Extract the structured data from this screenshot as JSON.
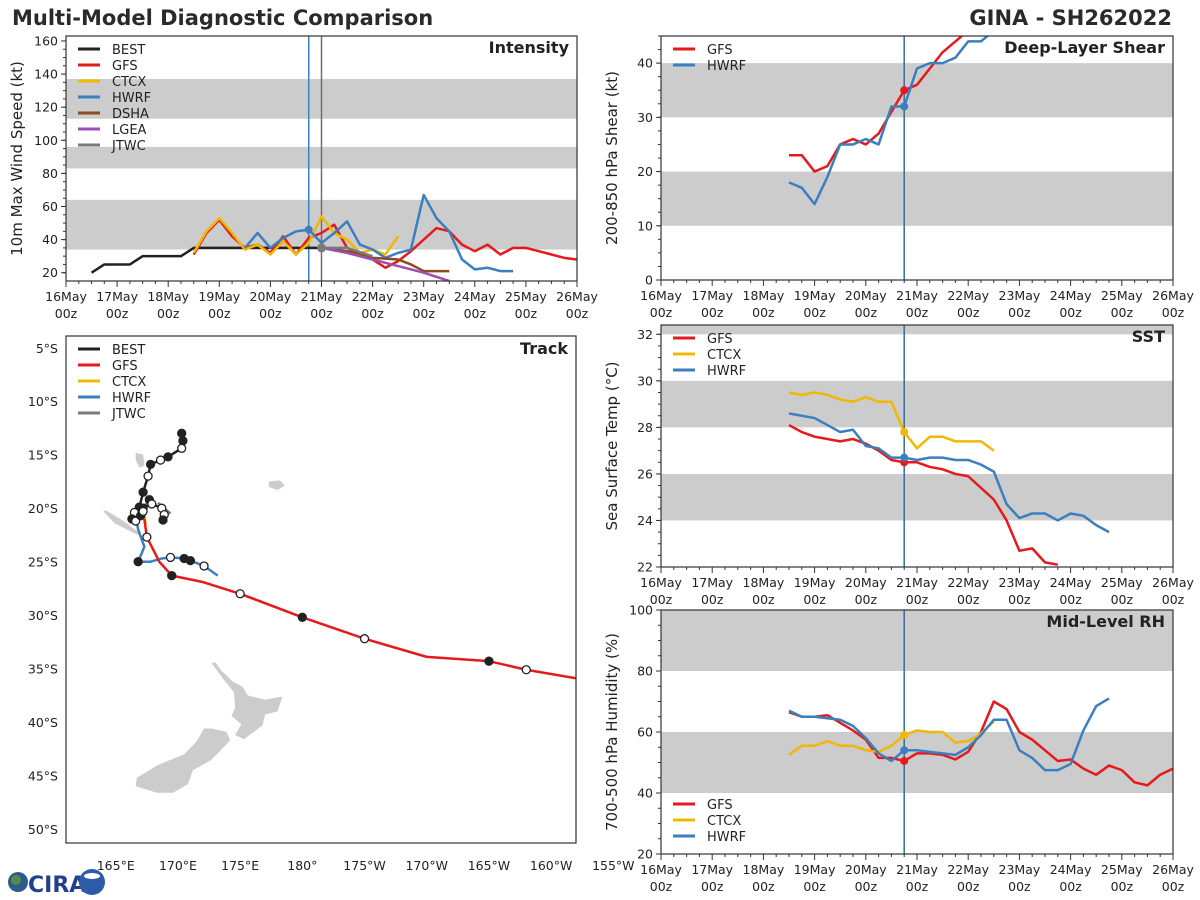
{
  "header": {
    "title": "Multi-Model Diagnostic Comparison",
    "storm": "GINA - SH262022"
  },
  "colors": {
    "BEST": "#222222",
    "GFS": "#e41a1c",
    "CTCX": "#f0b800",
    "HWRF": "#3a7fbf",
    "DSHA": "#8c4a1e",
    "LGEA": "#9b4fb0",
    "JTWC": "#7a7a7a",
    "band": "#cccccc"
  },
  "time_axis": {
    "ticks": [
      "16May\n00z",
      "17May\n00z",
      "18May\n00z",
      "19May\n00z",
      "20May\n00z",
      "21May\n00z",
      "22May\n00z",
      "23May\n00z",
      "24May\n00z",
      "25May\n00z",
      "26May\n00z"
    ],
    "range_days": [
      0,
      10
    ]
  },
  "logo": {
    "text": "CIRA"
  },
  "chart_data": [
    {
      "id": "intensity",
      "type": "line",
      "title": "Intensity",
      "ylabel": "10m Max Wind Speed (kt)",
      "xlabel": "",
      "ylim": [
        15,
        163
      ],
      "yticks": [
        20,
        40,
        60,
        80,
        100,
        120,
        140,
        160
      ],
      "bands": [
        [
          34,
          64
        ],
        [
          83,
          96
        ],
        [
          113,
          137
        ]
      ],
      "vlines": [
        {
          "x": 4.75,
          "color": "#3a7fbf"
        },
        {
          "x": 5.0,
          "color": "#7a6a6a"
        }
      ],
      "legend": "top-left",
      "series": [
        {
          "name": "BEST",
          "x": [
            0.5,
            0.75,
            1.0,
            1.25,
            1.5,
            1.75,
            2.0,
            2.25,
            2.5,
            2.75,
            3.0,
            3.25,
            3.5,
            3.75,
            4.0,
            4.25,
            4.5,
            4.75,
            5.0
          ],
          "y": [
            20,
            25,
            25,
            25,
            30,
            30,
            30,
            30,
            35,
            35,
            35,
            35,
            35,
            35,
            35,
            35,
            35,
            35,
            35
          ]
        },
        {
          "name": "GFS",
          "x": [
            2.5,
            2.75,
            3.0,
            3.25,
            3.5,
            3.75,
            4.0,
            4.25,
            4.5,
            4.75,
            5.0,
            5.25,
            5.5,
            5.75,
            6.0,
            6.25,
            6.5,
            6.75,
            7.0,
            7.25,
            7.5,
            7.75,
            8.0,
            8.25,
            8.5,
            8.75,
            9.0,
            9.25,
            9.5,
            9.75,
            10.0
          ],
          "y": [
            31,
            44,
            52,
            42,
            35,
            37,
            32,
            42,
            31,
            41,
            44,
            49,
            35,
            31,
            28,
            23,
            27,
            33,
            40,
            47,
            45,
            37,
            33,
            37,
            31,
            35,
            35,
            33,
            31,
            29,
            28
          ]
        },
        {
          "name": "CTCX",
          "x": [
            2.5,
            2.75,
            3.0,
            3.25,
            3.5,
            3.75,
            4.0,
            4.25,
            4.5,
            4.75,
            5.0,
            5.25,
            5.5,
            5.75,
            6.0,
            6.25,
            6.5
          ],
          "y": [
            32,
            45,
            53,
            44,
            34,
            37,
            31,
            39,
            31,
            38,
            54,
            44,
            40,
            32,
            34,
            31,
            42
          ]
        },
        {
          "name": "HWRF",
          "x": [
            3.5,
            3.75,
            4.0,
            4.25,
            4.5,
            4.75,
            5.0,
            5.25,
            5.5,
            5.75,
            6.0,
            6.25,
            6.5,
            6.75,
            7.0,
            7.25,
            7.5,
            7.75,
            8.0,
            8.25,
            8.5,
            8.75
          ],
          "y": [
            35,
            44,
            35,
            41,
            45,
            46,
            38,
            44,
            51,
            37,
            34,
            29,
            32,
            34,
            67,
            53,
            45,
            28,
            22,
            23,
            21,
            21
          ]
        },
        {
          "name": "DSHA",
          "x": [
            5.0,
            5.5,
            6.0,
            6.5,
            6.75,
            7.0,
            7.5
          ],
          "y": [
            35,
            33,
            29,
            28,
            25,
            21,
            21
          ]
        },
        {
          "name": "LGEA",
          "x": [
            5.0,
            5.5,
            6.0,
            6.5,
            7.0,
            7.5
          ],
          "y": [
            35,
            32,
            28,
            24,
            20,
            15
          ]
        },
        {
          "name": "JTWC",
          "x": [
            5.0,
            5.5,
            6.0
          ],
          "y": [
            35,
            35,
            30
          ]
        }
      ]
    },
    {
      "id": "shear",
      "type": "line",
      "title": "Deep-Layer Shear",
      "ylabel": "200-850 hPa Shear (kt)",
      "xlabel": "",
      "ylim": [
        0,
        45
      ],
      "yticks": [
        0,
        10,
        20,
        30,
        40
      ],
      "bands": [
        [
          10,
          20
        ],
        [
          30,
          40
        ]
      ],
      "vlines": [
        {
          "x": 4.75,
          "color": "#3a6a9a"
        }
      ],
      "legend": "top-left",
      "series": [
        {
          "name": "GFS",
          "x": [
            2.5,
            2.75,
            3.0,
            3.25,
            3.5,
            3.75,
            4.0,
            4.25,
            4.5,
            4.75,
            5.0,
            5.25,
            5.5,
            5.75,
            6.0
          ],
          "y": [
            23,
            23,
            20,
            21,
            25,
            26,
            25,
            27,
            31,
            35,
            36,
            39,
            42,
            44,
            46
          ]
        },
        {
          "name": "HWRF",
          "x": [
            2.5,
            2.75,
            3.0,
            3.25,
            3.5,
            3.75,
            4.0,
            4.25,
            4.5,
            4.75,
            5.0,
            5.25,
            5.5,
            5.75,
            6.0,
            6.25,
            6.5
          ],
          "y": [
            18,
            17,
            14,
            19,
            25,
            25,
            26,
            25,
            32,
            32,
            39,
            40,
            40,
            41,
            44,
            44,
            46
          ]
        }
      ]
    },
    {
      "id": "sst",
      "type": "line",
      "title": "SST",
      "ylabel": "Sea Surface Temp (°C)",
      "xlabel": "",
      "ylim": [
        22,
        32.4
      ],
      "yticks": [
        22,
        24,
        26,
        28,
        30,
        32
      ],
      "bands": [
        [
          24,
          26
        ],
        [
          28,
          30
        ],
        [
          32,
          33
        ]
      ],
      "vlines": [
        {
          "x": 4.75,
          "color": "#3a6a9a"
        }
      ],
      "legend": "top-left",
      "series": [
        {
          "name": "GFS",
          "x": [
            2.5,
            2.75,
            3.0,
            3.25,
            3.5,
            3.75,
            4.0,
            4.25,
            4.5,
            4.75,
            5.0,
            5.25,
            5.5,
            5.75,
            6.0,
            6.25,
            6.5,
            6.75,
            7.0,
            7.25,
            7.5,
            7.75
          ],
          "y": [
            28.1,
            27.8,
            27.6,
            27.5,
            27.4,
            27.5,
            27.3,
            27.0,
            26.6,
            26.5,
            26.5,
            26.3,
            26.2,
            26.0,
            25.9,
            25.4,
            24.9,
            24.0,
            22.7,
            22.8,
            22.2,
            22.1
          ]
        },
        {
          "name": "CTCX",
          "x": [
            2.5,
            2.75,
            3.0,
            3.25,
            3.5,
            3.75,
            4.0,
            4.25,
            4.5,
            4.75,
            5.0,
            5.25,
            5.5,
            5.75,
            6.0,
            6.25,
            6.5
          ],
          "y": [
            29.5,
            29.4,
            29.5,
            29.4,
            29.2,
            29.1,
            29.3,
            29.1,
            29.1,
            27.8,
            27.1,
            27.6,
            27.6,
            27.4,
            27.4,
            27.4,
            27.0
          ]
        },
        {
          "name": "HWRF",
          "x": [
            2.5,
            2.75,
            3.0,
            3.25,
            3.5,
            3.75,
            4.0,
            4.25,
            4.5,
            4.75,
            5.0,
            5.25,
            5.5,
            5.75,
            6.0,
            6.25,
            6.5,
            6.75,
            7.0,
            7.25,
            7.5,
            7.75,
            8.0,
            8.25,
            8.5,
            8.75
          ],
          "y": [
            28.6,
            28.5,
            28.4,
            28.1,
            27.8,
            27.9,
            27.2,
            27.1,
            26.7,
            26.7,
            26.6,
            26.7,
            26.7,
            26.6,
            26.6,
            26.4,
            26.1,
            24.7,
            24.1,
            24.3,
            24.3,
            24.0,
            24.3,
            24.2,
            23.8,
            23.5
          ]
        }
      ]
    },
    {
      "id": "rh",
      "type": "line",
      "title": "Mid-Level RH",
      "ylabel": "700-500 hPa Humidity (%)",
      "xlabel": "",
      "ylim": [
        20,
        100
      ],
      "yticks": [
        20,
        40,
        60,
        80,
        100
      ],
      "bands": [
        [
          40,
          60
        ],
        [
          80,
          100
        ]
      ],
      "vlines": [
        {
          "x": 4.75,
          "color": "#3a6a9a"
        }
      ],
      "legend": "bottom-left",
      "series": [
        {
          "name": "GFS",
          "x": [
            2.5,
            2.75,
            3.0,
            3.25,
            3.5,
            3.75,
            4.0,
            4.25,
            4.5,
            4.75,
            5.0,
            5.25,
            5.5,
            5.75,
            6.0,
            6.25,
            6.5,
            6.75,
            7.0,
            7.25,
            7.5,
            7.75,
            8.0,
            8.25,
            8.5,
            8.75,
            9.0,
            9.25,
            9.5,
            9.75,
            10.0
          ],
          "y": [
            66.5,
            65,
            65,
            65.5,
            63,
            60.5,
            57.5,
            51.5,
            51.5,
            50.5,
            53,
            53,
            52.5,
            51,
            53.5,
            60,
            70,
            67.5,
            60,
            57.5,
            54,
            50.5,
            51,
            48,
            46,
            49,
            47.5,
            43.5,
            42.5,
            46,
            48
          ]
        },
        {
          "name": "CTCX",
          "x": [
            2.5,
            2.75,
            3.0,
            3.25,
            3.5,
            3.75,
            4.0,
            4.25,
            4.5,
            4.75,
            5.0,
            5.25,
            5.5,
            5.75,
            6.0,
            6.25,
            6.5
          ],
          "y": [
            52.5,
            55.5,
            55.5,
            57,
            55.5,
            55.5,
            54,
            53.5,
            55.5,
            59,
            60.5,
            60,
            60,
            56.5,
            57,
            59.5,
            63.5
          ]
        },
        {
          "name": "HWRF",
          "x": [
            2.5,
            2.75,
            3.0,
            3.25,
            3.5,
            3.75,
            4.0,
            4.25,
            4.5,
            4.75,
            5.0,
            5.25,
            5.5,
            5.75,
            6.0,
            6.25,
            6.5,
            6.75,
            7.0,
            7.25,
            7.5,
            7.75,
            8.0,
            8.25,
            8.5,
            8.75
          ],
          "y": [
            67,
            65,
            65,
            64.5,
            64,
            62,
            58,
            53,
            50.5,
            54,
            54,
            53.5,
            53,
            52.5,
            55,
            59,
            64,
            64,
            54,
            51.5,
            47.5,
            47.5,
            49.5,
            60.5,
            68.5,
            71
          ]
        }
      ]
    },
    {
      "id": "track",
      "type": "line",
      "title": "Track",
      "ylabel": "",
      "xlabel": "",
      "xlim": [
        161,
        202
      ],
      "ylim": [
        -51.3,
        -3.9
      ],
      "xticks": [
        {
          "v": 165,
          "label": "165°E"
        },
        {
          "v": 170,
          "label": "170°E"
        },
        {
          "v": 175,
          "label": "175°E"
        },
        {
          "v": 180,
          "label": "180°"
        },
        {
          "v": 185,
          "label": "175°W"
        },
        {
          "v": 190,
          "label": "170°W"
        },
        {
          "v": 195,
          "label": "165°W"
        },
        {
          "v": 200,
          "label": "160°W"
        },
        {
          "v": 205,
          "label": "155°W"
        }
      ],
      "yticks": [
        {
          "v": -5,
          "label": "5°S"
        },
        {
          "v": -10,
          "label": "10°S"
        },
        {
          "v": -15,
          "label": "15°S"
        },
        {
          "v": -20,
          "label": "20°S"
        },
        {
          "v": -25,
          "label": "25°S"
        },
        {
          "v": -30,
          "label": "30°S"
        },
        {
          "v": -35,
          "label": "35°S"
        },
        {
          "v": -40,
          "label": "40°S"
        },
        {
          "v": -45,
          "label": "45°S"
        },
        {
          "v": -50,
          "label": "50°S"
        }
      ],
      "legend": "top-left",
      "series": [
        {
          "name": "BEST",
          "lon": [
            170.3,
            170.4,
            170.3,
            169.2,
            168.6,
            167.8,
            167.6,
            167.2,
            166.9,
            167.2,
            167.9,
            168.7,
            168.9,
            168.8
          ],
          "lat": [
            -13.0,
            -13.7,
            -14.4,
            -15.2,
            -15.5,
            -15.9,
            -17.0,
            -18.5,
            -19.9,
            -20.0,
            -19.6,
            -20.0,
            -20.6,
            -21.1
          ],
          "markers": [
            1,
            1,
            0,
            1,
            0,
            1,
            0,
            1,
            1,
            1,
            0,
            0,
            0,
            1
          ]
        },
        {
          "name": "BEST_B",
          "lon": [
            166.9,
            166.5,
            166.3,
            166.6,
            167.0,
            167.2
          ],
          "lat": [
            -19.9,
            -20.4,
            -21.0,
            -21.2,
            -20.7,
            -20.3
          ],
          "markers": [
            1,
            0,
            1,
            0,
            1,
            0
          ]
        },
        {
          "name": "GFS",
          "lon": [
            167.3,
            167.5,
            168.5,
            169.5,
            172.0,
            175.0,
            180.0,
            185.0,
            190.0,
            195.0,
            198.0,
            203.0
          ],
          "lat": [
            -21.0,
            -22.7,
            -25.0,
            -26.3,
            -26.9,
            -28.0,
            -30.2,
            -32.2,
            -33.9,
            -34.3,
            -35.1,
            -36.1
          ],
          "markers": [
            -1,
            0,
            -1,
            1,
            -1,
            0,
            1,
            0,
            -1,
            1,
            0,
            -1
          ]
        },
        {
          "name": "CTCX",
          "lon": [
            167.0,
            167.3,
            167.4
          ],
          "lat": [
            -19.7,
            -20.5,
            -21.5
          ],
          "markers": [
            -1,
            -1,
            -1
          ]
        },
        {
          "name": "HWRF",
          "lon": [
            167.7,
            167.2,
            166.6,
            166.8,
            167.3,
            166.8,
            167.8,
            168.7,
            169.4,
            170.5,
            171.0,
            172.1,
            173.2
          ],
          "lat": [
            -19.2,
            -20.0,
            -20.7,
            -22.0,
            -23.6,
            -25.0,
            -25.0,
            -24.7,
            -24.6,
            -24.7,
            -24.9,
            -25.4,
            -26.3
          ],
          "markers": [
            1,
            -1,
            -1,
            -1,
            -1,
            1,
            -1,
            -1,
            0,
            1,
            1,
            0,
            -1
          ]
        },
        {
          "name": "JTWC",
          "lon": [
            168.4,
            169.4
          ],
          "lat": [
            -19.5,
            -20.5
          ],
          "markers": [
            -1,
            -1
          ]
        }
      ]
    }
  ]
}
